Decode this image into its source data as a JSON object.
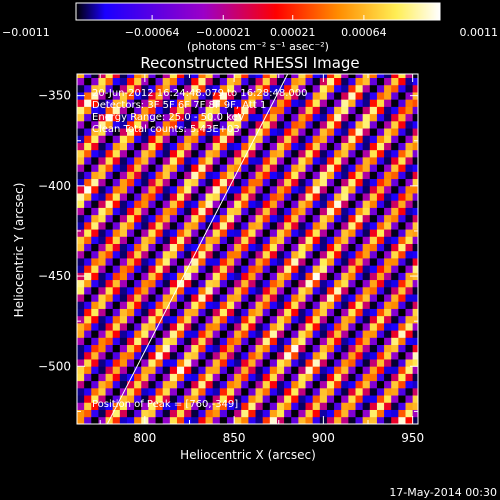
{
  "chart_data": {
    "type": "heatmap",
    "title": "Reconstructed RHESSI Image",
    "xlabel": "Heliocentric X (arcsec)",
    "ylabel": "Heliocentric Y (arcsec)",
    "xlim": [
      762,
      953
    ],
    "ylim": [
      -532,
      -338
    ],
    "xticks": [
      800,
      850,
      900,
      950
    ],
    "yticks": [
      -350,
      -400,
      -450,
      -500
    ],
    "xtick_labels": [
      "800",
      "850",
      "900",
      "950"
    ],
    "ytick_labels": [
      "−350",
      "−400",
      "−450",
      "−500"
    ],
    "grid": false,
    "colorbar": {
      "range": [
        -0.0011,
        0.0011
      ],
      "ticks": [
        -0.0011,
        -0.00064,
        -0.00021,
        0.00021,
        0.00064,
        0.0011
      ],
      "tick_labels": [
        "−0.0011",
        "−0.00064",
        "−0.00021",
        "0.00021",
        "0.00064",
        "0.0011"
      ],
      "unit_label": "(photons cm⁻² s⁻¹ asec⁻²)",
      "colormap": [
        "#000000",
        "#1a00ff",
        "#9b00c8",
        "#ff0000",
        "#ff8c00",
        "#ffee55",
        "#ffffff"
      ]
    },
    "annotations": {
      "time": "20-Jun-2012 16:24:48.079 to 16:28:48.000",
      "detectors": "Detectors: 3F 5F 6F 7F 8F 9F, Att 1",
      "energy": "Energy Range: 25.0 - 50.0 keV",
      "clean": "Clean    Total counts: 5.43E+03",
      "peak": "Position of Peak = [760,-349]"
    },
    "limb_line": {
      "x": [
        779,
        880
      ],
      "y": [
        -532,
        -338
      ]
    },
    "pattern": {
      "description_values": "diagonal fringe stripes",
      "stripe_period_arcsec": 14.5,
      "stripe_angle_deg": 37
    }
  },
  "footer": {
    "timestamp": "17-May-2014 00:30"
  }
}
